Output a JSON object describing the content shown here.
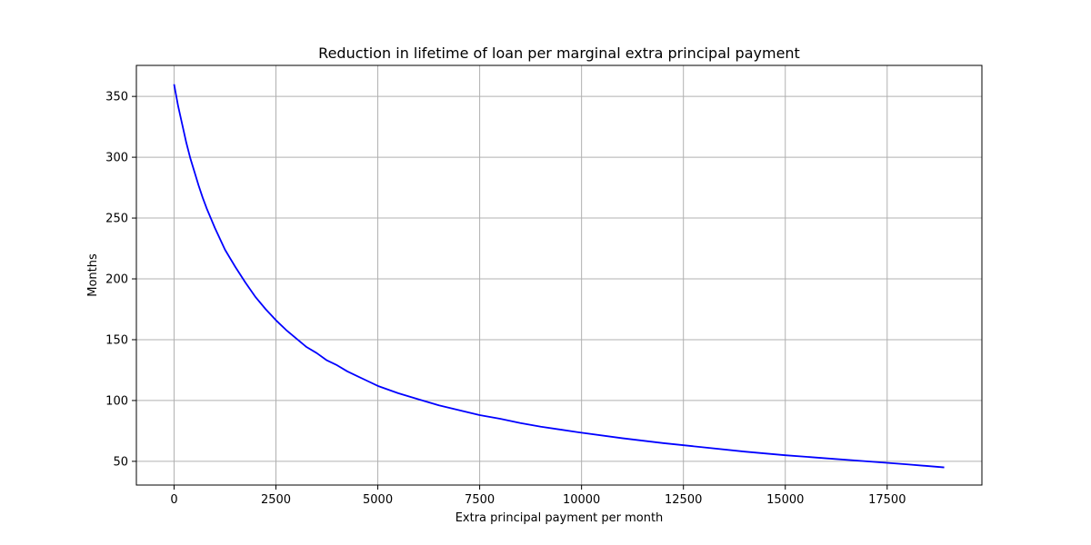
{
  "chart_data": {
    "type": "line",
    "title": "Reduction in lifetime of loan per marginal extra principal payment",
    "xlabel": "Extra principal payment per month",
    "ylabel": "Months",
    "xlim": [
      -925,
      19825
    ],
    "ylim": [
      30.5,
      375.5
    ],
    "xticks": [
      0,
      2500,
      5000,
      7500,
      10000,
      12500,
      15000,
      17500
    ],
    "xtick_labels": [
      "0",
      "2500",
      "5000",
      "7500",
      "10000",
      "12500",
      "15000",
      "17500"
    ],
    "yticks": [
      50,
      100,
      150,
      200,
      250,
      300,
      350
    ],
    "ytick_labels": [
      "50",
      "100",
      "150",
      "200",
      "250",
      "300",
      "350"
    ],
    "grid": true,
    "series": [
      {
        "color": "#0000ff",
        "x": [
          0,
          100,
          200,
          300,
          400,
          500,
          600,
          700,
          800,
          900,
          1000,
          1250,
          1500,
          1750,
          2000,
          2250,
          2500,
          2750,
          3000,
          3250,
          3500,
          3750,
          4000,
          4250,
          4500,
          4750,
          5000,
          5500,
          6000,
          6500,
          7000,
          7500,
          8000,
          8500,
          9000,
          9500,
          10000,
          11000,
          12000,
          13000,
          14000,
          15000,
          16000,
          17000,
          18000,
          18900
        ],
        "y": [
          360,
          342,
          327,
          312,
          299,
          288,
          277,
          267,
          258,
          250,
          242,
          224,
          210,
          197,
          185,
          175,
          166,
          158,
          151,
          144,
          139,
          133,
          129,
          124,
          120,
          116,
          112,
          106,
          101,
          96,
          92,
          88,
          85,
          81.5,
          78.5,
          76,
          73.5,
          69,
          65,
          61.5,
          58,
          55,
          52.5,
          50,
          47.5,
          45
        ]
      }
    ]
  }
}
